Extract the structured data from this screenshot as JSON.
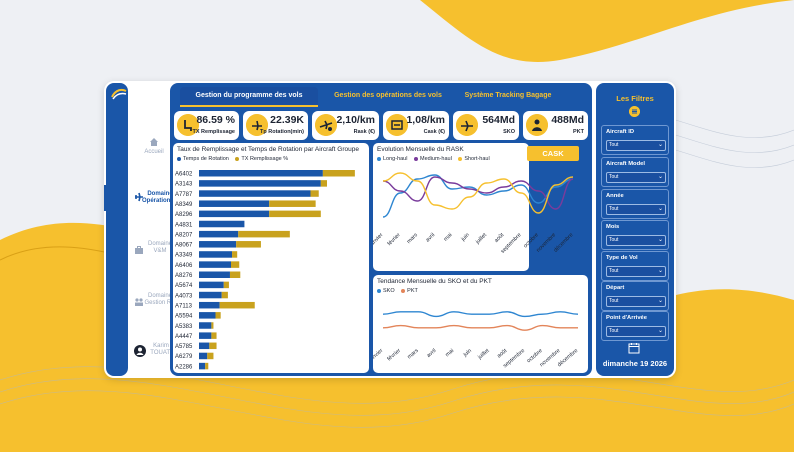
{
  "colors": {
    "blue": "#1a56a8",
    "yellow": "#f6c02e",
    "purple": "#7a3c9c",
    "lightblue": "#2e86d1",
    "orange": "#e3855a"
  },
  "sidebar": {
    "items": [
      {
        "label": "Accueil",
        "icon": "home-icon"
      },
      {
        "label": "Domaine Opérationnel",
        "icon": "airplane-icon"
      },
      {
        "label": "Domaine V&M",
        "icon": "briefcase-icon"
      },
      {
        "label": "Domaine Gestion RH",
        "icon": "people-icon"
      },
      {
        "label": "Karim TOUATI",
        "icon": "user-icon"
      }
    ]
  },
  "tabs": [
    "Gestion du programme des vols",
    "Gestion des opérations des vols",
    "Système Tracking Bagage"
  ],
  "kpis": [
    {
      "value": "86.59 %",
      "label": "TX Remplissage",
      "icon": "seat-icon"
    },
    {
      "value": "22.39K",
      "label": "Tp Rotation(min)",
      "icon": "plane-clock-icon"
    },
    {
      "value": "2,10/km",
      "label": "Rask (€)",
      "icon": "plane-coin-icon"
    },
    {
      "value": "1,08/km",
      "label": "Cask (€)",
      "icon": "plane-money-icon"
    },
    {
      "value": "564Md",
      "label": "SKO",
      "icon": "plane-seat-icon"
    },
    {
      "value": "488Md",
      "label": "PKT",
      "icon": "passenger-icon"
    }
  ],
  "cask_button": "CASK",
  "filters": {
    "title": "Les Filtres",
    "items": [
      {
        "label": "Aircraft ID",
        "value": "Tout"
      },
      {
        "label": "Aircraft Model",
        "value": "Tout"
      },
      {
        "label": "Année",
        "value": "Tout"
      },
      {
        "label": "Mois",
        "value": "Tout"
      },
      {
        "label": "Type de Vol",
        "value": "Tout"
      },
      {
        "label": "Départ",
        "value": "Tout"
      },
      {
        "label": "Point d'Arrivée",
        "value": "Tout"
      }
    ],
    "date": "dimanche 19 2026"
  },
  "chart_data": [
    {
      "type": "bar",
      "orientation": "horizontal",
      "stacked": true,
      "title": "Taux de Remplissage et Temps de Rotation par Aircraft Groupe",
      "categories": [
        "A6402",
        "A3143",
        "A7787",
        "A8349",
        "A8296",
        "A4831",
        "A8207",
        "A8067",
        "A3349",
        "A6406",
        "A8276",
        "A5674",
        "A4073",
        "A7113",
        "A5594",
        "A5383",
        "A4447",
        "A5785",
        "A6279",
        "A2286"
      ],
      "series": [
        {
          "name": "Temps de Rotation",
          "color": "#1a56a8",
          "values": [
            120,
            118,
            108,
            68,
            68,
            44,
            38,
            36,
            32,
            31,
            30,
            24,
            22,
            20,
            16,
            12,
            12,
            10,
            8,
            6
          ]
        },
        {
          "name": "TX Remplissage %",
          "color": "#c9a21e",
          "values": [
            31,
            6,
            8,
            45,
            50,
            0,
            50,
            24,
            5,
            8,
            10,
            5,
            6,
            34,
            5,
            2,
            5,
            7,
            6,
            3
          ]
        }
      ],
      "legend": "top"
    },
    {
      "type": "line",
      "title": "Evolution Mensuelle du RASK",
      "x": [
        "janvier",
        "février",
        "mars",
        "avril",
        "mai",
        "juin",
        "juillet",
        "août",
        "septembre",
        "octobre",
        "novembre",
        "décembre"
      ],
      "series": [
        {
          "name": "Long-haul",
          "color": "#2e86d1",
          "values": [
            1.5,
            2.1,
            2.45,
            2.55,
            2.2,
            2.25,
            2.05,
            2.15,
            2.3,
            1.85,
            2.25,
            2.45
          ]
        },
        {
          "name": "Medium-haul",
          "color": "#7a3c9c",
          "values": [
            2.4,
            2.15,
            1.9,
            2.5,
            2.35,
            2.2,
            2.1,
            2.25,
            2.4,
            2.15,
            1.7,
            2.45
          ]
        },
        {
          "name": "Short-haul",
          "color": "#f6c02e",
          "values": [
            2.4,
            2.6,
            2.4,
            1.8,
            1.7,
            2.0,
            2.35,
            2.45,
            2.1,
            1.6,
            2.3,
            2.5
          ]
        }
      ],
      "legend": "top-left"
    },
    {
      "type": "line",
      "title": "Tendance Mensuelle du SKO et du PKT",
      "x": [
        "janvier",
        "février",
        "mars",
        "avril",
        "mai",
        "juin",
        "juillet",
        "août",
        "septembre",
        "octobre",
        "novembre",
        "décembre"
      ],
      "series": [
        {
          "name": "SKO",
          "color": "#2e86d1",
          "values": [
            46,
            47,
            47,
            45,
            47,
            46,
            46,
            47,
            45,
            46,
            47,
            46
          ]
        },
        {
          "name": "PKT",
          "color": "#e3855a",
          "values": [
            40,
            41,
            40,
            40,
            41,
            40,
            40,
            41,
            39,
            41,
            40,
            40
          ]
        }
      ],
      "legend": "top-left"
    }
  ]
}
